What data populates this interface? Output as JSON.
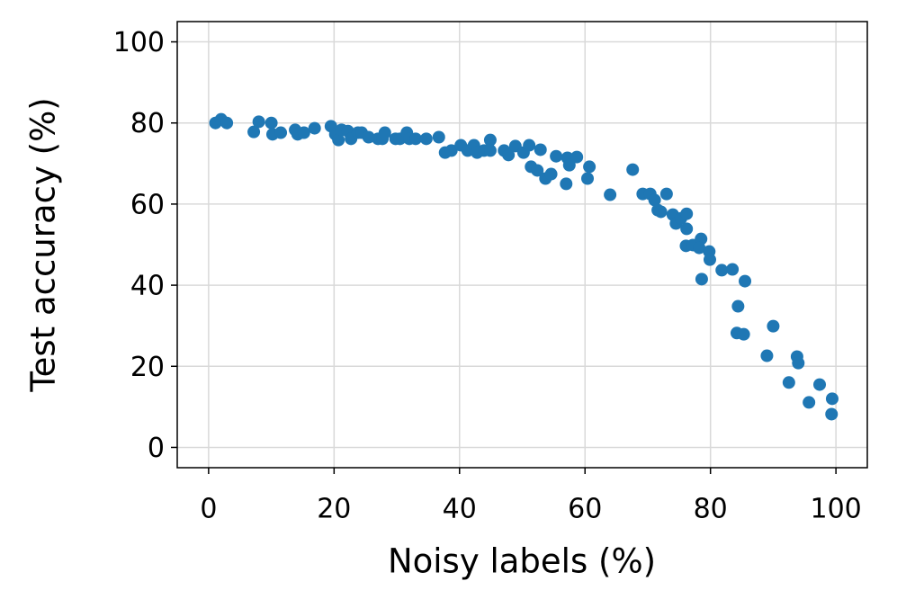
{
  "chart_data": {
    "type": "scatter",
    "xlabel": "Noisy labels (%)",
    "ylabel": "Test accuracy (%)",
    "color": "#1f77b4",
    "grid": true,
    "xlim": [
      -5,
      105
    ],
    "ylim": [
      -5,
      105
    ],
    "xticks": [
      0,
      20,
      40,
      60,
      80,
      100
    ],
    "yticks": [
      0,
      20,
      40,
      60,
      80,
      100
    ],
    "x": [
      1.1,
      2.0,
      2.9,
      7.2,
      8.0,
      10.0,
      10.2,
      11.5,
      13.8,
      14.2,
      15.2,
      16.9,
      19.5,
      20.2,
      20.7,
      21.2,
      22.2,
      22.7,
      23.8,
      24.4,
      25.5,
      27.0,
      27.7,
      28.1,
      29.8,
      30.5,
      31.6,
      32.0,
      33.0,
      34.7,
      36.7,
      37.7,
      38.7,
      40.2,
      41.3,
      42.3,
      42.8,
      43.9,
      44.9,
      44.9,
      47.1,
      47.8,
      48.9,
      50.2,
      51.1,
      51.4,
      52.4,
      52.9,
      53.7,
      54.6,
      55.4,
      57.0,
      57.2,
      57.5,
      58.7,
      60.7,
      60.4,
      64.0,
      67.6,
      69.2,
      70.4,
      71.1,
      71.6,
      72.1,
      73.0,
      74.0,
      74.5,
      75.3,
      76.2,
      76.2,
      76.1,
      77.2,
      78.5,
      78.2,
      79.8,
      79.9,
      78.6,
      81.8,
      83.5,
      84.4,
      84.2,
      85.3,
      85.5,
      90.0,
      89.0,
      92.5,
      93.8,
      94.0,
      95.7,
      97.4,
      99.4,
      99.3
    ],
    "values": [
      80.0,
      80.9,
      80.0,
      77.8,
      80.3,
      80.0,
      77.2,
      77.6,
      78.3,
      77.2,
      77.6,
      78.7,
      79.2,
      77.2,
      75.8,
      78.3,
      78.0,
      76.1,
      77.6,
      77.6,
      76.5,
      76.1,
      76.1,
      77.6,
      76.1,
      76.1,
      77.6,
      76.1,
      76.1,
      76.1,
      76.5,
      72.7,
      73.2,
      74.5,
      73.2,
      74.5,
      72.7,
      73.2,
      75.8,
      73.2,
      73.2,
      72.1,
      74.3,
      72.7,
      74.5,
      69.2,
      68.3,
      73.4,
      66.3,
      67.4,
      71.8,
      65.0,
      71.4,
      69.6,
      71.6,
      69.2,
      66.3,
      62.3,
      68.5,
      62.5,
      62.5,
      61.0,
      58.5,
      58.1,
      62.5,
      57.4,
      55.2,
      56.5,
      57.6,
      53.9,
      49.7,
      49.9,
      51.4,
      49.2,
      48.3,
      46.3,
      41.5,
      43.7,
      43.9,
      34.8,
      28.2,
      27.9,
      41.0,
      29.9,
      22.6,
      16.0,
      22.4,
      20.8,
      11.1,
      15.5,
      12.0,
      8.2
    ]
  }
}
